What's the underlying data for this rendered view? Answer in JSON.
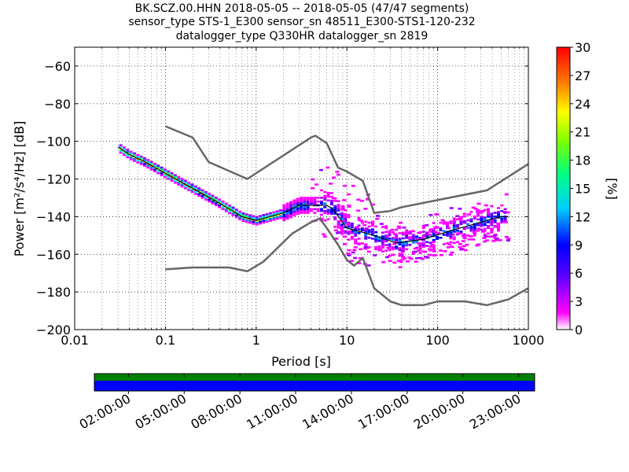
{
  "titles": [
    "BK.SCZ.00.HHN   2018-05-05 -- 2018-05-05  (47/47 segments)",
    "sensor_type STS-1_E300 sensor_sn 48511_E300-STS1-120-232",
    "datalogger_type Q330HR datalogger_sn 2819"
  ],
  "chart_data": {
    "type": "heatmap",
    "x": {
      "label": "Period [s]",
      "scale": "log",
      "range": [
        0.01,
        1000
      ],
      "ticks": [
        0.01,
        0.1,
        1,
        10,
        100,
        1000
      ],
      "tick_labels": [
        "0.01",
        "0.1",
        "1",
        "10",
        "100",
        "1000"
      ]
    },
    "y": {
      "label": "Power [m²/s⁴/Hz] [dB]",
      "range": [
        -200,
        -50
      ],
      "ticks": [
        -200,
        -180,
        -160,
        -140,
        -120,
        -100,
        -80,
        -60
      ],
      "tick_labels": [
        "−200",
        "−180",
        "−160",
        "−140",
        "−120",
        "−100",
        "−80",
        "−60"
      ]
    },
    "colorbar": {
      "label": "[%]",
      "range": [
        0,
        30
      ],
      "ticks": [
        "0",
        "3",
        "6",
        "9",
        "12",
        "15",
        "18",
        "21",
        "24",
        "27",
        "30"
      ]
    },
    "series": [
      {
        "name": "",
        "points": [
          [
            0.03,
            -103
          ],
          [
            0.04,
            -107
          ],
          [
            0.06,
            -111
          ],
          [
            0.1,
            -117
          ],
          [
            0.2,
            -125
          ],
          [
            0.4,
            -133
          ],
          [
            0.7,
            -140
          ],
          [
            1,
            -142
          ],
          [
            2,
            -138
          ],
          [
            3,
            -134
          ],
          [
            5,
            -134
          ],
          [
            6,
            -134
          ],
          [
            7,
            -136
          ],
          [
            10,
            -146
          ],
          [
            20,
            -150
          ],
          [
            35,
            -154
          ],
          [
            70,
            -152
          ],
          [
            150,
            -147
          ],
          [
            300,
            -143
          ],
          [
            500,
            -140
          ],
          [
            600,
            -140
          ]
        ]
      },
      {
        "name": "",
        "points": [
          [
            0.1,
            -92
          ],
          [
            0.2,
            -98
          ],
          [
            0.3,
            -111
          ],
          [
            0.8,
            -120
          ],
          [
            4,
            -98
          ],
          [
            4.5,
            -97
          ],
          [
            6,
            -101
          ],
          [
            8,
            -114
          ],
          [
            10,
            -116
          ],
          [
            15,
            -121
          ],
          [
            20,
            -138
          ],
          [
            30,
            -137
          ],
          [
            40,
            -135
          ],
          [
            350,
            -126
          ],
          [
            1000,
            -112
          ]
        ]
      },
      {
        "name": "",
        "points": [
          [
            0.1,
            -168
          ],
          [
            0.2,
            -167
          ],
          [
            0.5,
            -167
          ],
          [
            0.8,
            -169
          ],
          [
            1.2,
            -164
          ],
          [
            2.5,
            -149
          ],
          [
            4,
            -143
          ],
          [
            5,
            -141
          ],
          [
            6,
            -146
          ],
          [
            8,
            -155
          ],
          [
            10,
            -163
          ],
          [
            12,
            -166
          ],
          [
            15,
            -162
          ],
          [
            20,
            -178
          ],
          [
            30,
            -185
          ],
          [
            40,
            -187
          ],
          [
            70,
            -187
          ],
          [
            100,
            -185
          ],
          [
            200,
            -185
          ],
          [
            350,
            -187
          ],
          [
            600,
            -184
          ],
          [
            1000,
            -178
          ]
        ]
      }
    ],
    "grid": "on",
    "time_axis": {
      "ticks": [
        "02:00:00",
        "05:00:00",
        "08:00:00",
        "11:00:00",
        "14:00:00",
        "17:00:00",
        "20:00:00",
        "23:00:00"
      ]
    }
  }
}
